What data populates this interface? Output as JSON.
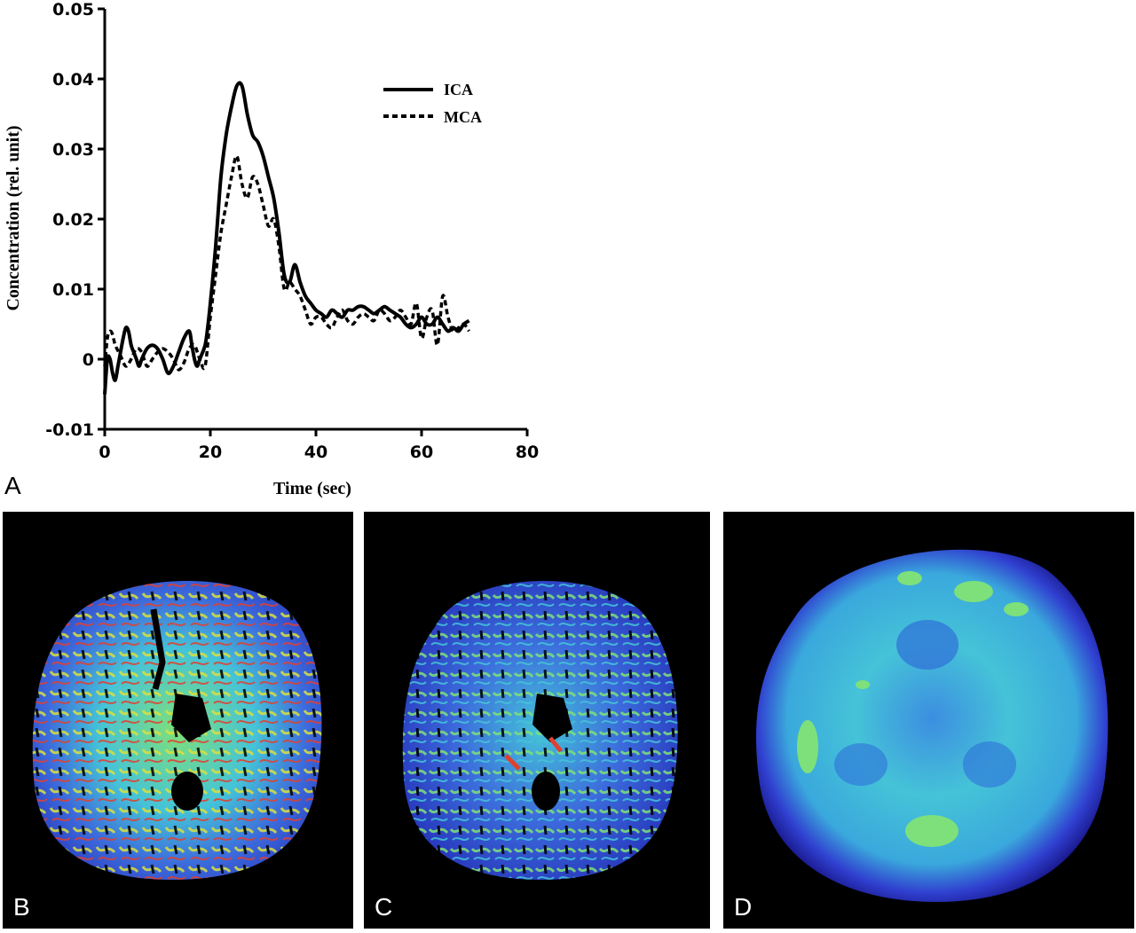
{
  "chart_data": {
    "type": "line",
    "xlabel": "Time (sec)",
    "ylabel": "Concentration (rel. unit)",
    "xlim": [
      0,
      80
    ],
    "ylim": [
      -0.01,
      0.05
    ],
    "xticks": [
      "0",
      "20",
      "40",
      "60",
      "80"
    ],
    "yticks": [
      "0.05",
      "0.04",
      "0.03",
      "0.02",
      "0.01",
      "0",
      "-0.01"
    ],
    "grid": false,
    "legend_position": "top-right",
    "series": [
      {
        "name": "ICA",
        "style": "solid",
        "x": [
          0,
          0.5,
          1,
          1.5,
          2,
          2.5,
          3,
          3.5,
          4,
          4.5,
          5,
          5.5,
          6,
          6.5,
          7,
          8,
          9,
          10,
          11,
          12,
          13,
          14,
          15,
          16,
          16.5,
          17,
          17.5,
          18,
          19,
          19.5,
          20,
          21,
          22,
          23,
          24,
          25,
          26,
          27,
          28,
          29,
          30,
          31,
          32,
          33,
          34,
          35,
          36,
          37,
          38,
          39,
          40,
          41,
          42,
          43,
          44,
          45,
          46,
          47,
          48,
          49,
          50,
          51,
          52,
          53,
          54,
          55,
          56,
          57,
          58,
          59,
          60,
          61,
          62,
          63,
          64,
          65,
          66,
          67,
          68,
          69
        ],
        "y": [
          -0.005,
          0.0,
          0.0,
          -0.002,
          -0.003,
          -0.001,
          0.001,
          0.003,
          0.0045,
          0.004,
          0.002,
          0.001,
          0.0,
          -0.001,
          0.0,
          0.0015,
          0.002,
          0.0015,
          0.0,
          -0.002,
          -0.001,
          0.001,
          0.003,
          0.004,
          0.002,
          0.0,
          -0.001,
          0.0,
          0.002,
          0.0045,
          0.008,
          0.016,
          0.026,
          0.032,
          0.036,
          0.039,
          0.039,
          0.035,
          0.032,
          0.031,
          0.029,
          0.026,
          0.023,
          0.018,
          0.012,
          0.011,
          0.0135,
          0.011,
          0.009,
          0.008,
          0.007,
          0.0065,
          0.006,
          0.007,
          0.0065,
          0.006,
          0.007,
          0.007,
          0.0075,
          0.0075,
          0.007,
          0.0065,
          0.007,
          0.0075,
          0.007,
          0.0065,
          0.006,
          0.005,
          0.0045,
          0.005,
          0.006,
          0.005,
          0.005,
          0.006,
          0.005,
          0.004,
          0.0045,
          0.004,
          0.005,
          0.0055
        ]
      },
      {
        "name": "MCA",
        "style": "dashed",
        "x": [
          0,
          0.5,
          1,
          1.5,
          2,
          3,
          4,
          5,
          6,
          7,
          8,
          9,
          10,
          11,
          12,
          13,
          14,
          15,
          16,
          17,
          18,
          19,
          20,
          21,
          22,
          23,
          24,
          25,
          26,
          27,
          28,
          29,
          30,
          31,
          32,
          33,
          34,
          35,
          36,
          37,
          38,
          39,
          40,
          41,
          42,
          43,
          44,
          45,
          46,
          47,
          48,
          49,
          50,
          51,
          52,
          53,
          54,
          55,
          56,
          57,
          58,
          59,
          60,
          61,
          62,
          63,
          64,
          65,
          66,
          67,
          68,
          69
        ],
        "y": [
          -0.001,
          0.003,
          0.004,
          0.0035,
          0.002,
          0.0005,
          -0.001,
          0.0,
          0.0015,
          0.001,
          -0.001,
          0.0,
          0.001,
          0.0015,
          0.001,
          0.0,
          -0.0015,
          -0.0005,
          0.0015,
          0.002,
          0.0,
          -0.001,
          0.006,
          0.012,
          0.018,
          0.022,
          0.026,
          0.029,
          0.025,
          0.023,
          0.026,
          0.025,
          0.022,
          0.019,
          0.02,
          0.016,
          0.01,
          0.011,
          0.01,
          0.009,
          0.007,
          0.005,
          0.006,
          0.006,
          0.005,
          0.0045,
          0.006,
          0.007,
          0.0055,
          0.005,
          0.006,
          0.0065,
          0.006,
          0.0055,
          0.007,
          0.0065,
          0.0055,
          0.006,
          0.007,
          0.006,
          0.005,
          0.008,
          0.003,
          0.006,
          0.007,
          0.002,
          0.009,
          0.006,
          0.004,
          0.0045,
          0.005,
          0.004
        ]
      }
    ]
  },
  "panels": {
    "a_label": "A",
    "b_label": "B",
    "c_label": "C",
    "d_label": "D"
  },
  "colors": {
    "panel_background": "#000000",
    "cbf_scale": [
      "#1a1aa8",
      "#3c6bdc",
      "#45c3d8",
      "#7ee07a",
      "#d8e040",
      "#e04030"
    ]
  }
}
